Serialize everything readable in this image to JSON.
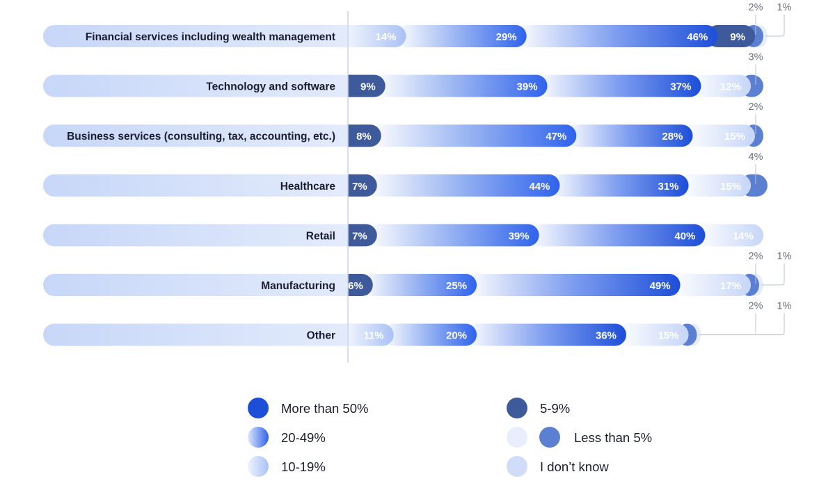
{
  "chart_data": {
    "type": "bar",
    "orientation": "horizontal",
    "stacked": true,
    "categories": [
      "Financial services including wealth management",
      "Technology and software",
      "Business services (consulting, tax, accounting, etc.)",
      "Healthcare",
      "Retail",
      "Manufacturing",
      "Other"
    ],
    "series": [
      {
        "name": "5-9%",
        "key": "s5_9",
        "values": [
          null,
          9,
          8,
          7,
          7,
          6,
          null
        ]
      },
      {
        "name": "10-19%",
        "key": "s10_19",
        "values": [
          14,
          null,
          null,
          null,
          null,
          null,
          11
        ]
      },
      {
        "name": "20-49%",
        "key": "s20_49",
        "values": [
          29,
          39,
          47,
          44,
          39,
          25,
          20
        ]
      },
      {
        "name": "More than 50%",
        "key": "s50",
        "values": [
          46,
          37,
          28,
          31,
          40,
          49,
          36
        ]
      },
      {
        "name": "5-9%",
        "key": "s5_9b",
        "values": [
          9,
          null,
          null,
          null,
          null,
          null,
          null
        ]
      },
      {
        "name": "I don’t know",
        "key": "dk",
        "values": [
          null,
          12,
          15,
          15,
          14,
          17,
          15
        ]
      },
      {
        "name": "Less than 5%",
        "key": "lt5",
        "values": [
          2,
          3,
          2,
          4,
          null,
          2,
          2
        ]
      },
      {
        "name": "Less than 5% (light)",
        "key": "lt5light",
        "values": [
          1,
          null,
          null,
          null,
          null,
          1,
          1
        ]
      }
    ],
    "segment_order": [
      [
        "10-19%",
        "20-49%",
        "More than 50%",
        "5-9%",
        "Less than 5%",
        "Less than 5% (light)"
      ],
      [
        "5-9%",
        "20-49%",
        "More than 50%",
        "I don’t know",
        "Less than 5%"
      ],
      [
        "5-9%",
        "20-49%",
        "More than 50%",
        "I don’t know",
        "Less than 5%"
      ],
      [
        "5-9%",
        "20-49%",
        "More than 50%",
        "I don’t know",
        "Less than 5%"
      ],
      [
        "5-9%",
        "20-49%",
        "More than 50%",
        "I don’t know"
      ],
      [
        "5-9%",
        "20-49%",
        "More than 50%",
        "I don’t know",
        "Less than 5%",
        "Less than 5% (light)"
      ],
      [
        "10-19%",
        "20-49%",
        "More than 50%",
        "I don’t know",
        "Less than 5%",
        "Less than 5% (light)"
      ]
    ],
    "rows": [
      {
        "label": "Financial services including wealth management",
        "segments": [
          {
            "series": "10-19%",
            "value": 14,
            "label": "14%"
          },
          {
            "series": "20-49%",
            "value": 29,
            "label": "29%"
          },
          {
            "series": "More than 50%",
            "value": 46,
            "label": "46%"
          },
          {
            "series": "5-9%",
            "value": 9,
            "label": "9%"
          },
          {
            "series": "Less than 5%",
            "value": 2,
            "label": "2%",
            "outside": true
          },
          {
            "series": "Less than 5% (light)",
            "value": 1,
            "label": "1%",
            "outside": true
          }
        ]
      },
      {
        "label": "Technology and software",
        "segments": [
          {
            "series": "5-9%",
            "value": 9,
            "label": "9%"
          },
          {
            "series": "20-49%",
            "value": 39,
            "label": "39%"
          },
          {
            "series": "More than 50%",
            "value": 37,
            "label": "37%"
          },
          {
            "series": "I don’t know",
            "value": 12,
            "label": "12%"
          },
          {
            "series": "Less than 5%",
            "value": 3,
            "label": "3%",
            "outside": true
          }
        ]
      },
      {
        "label": "Business services (consulting, tax, accounting, etc.)",
        "segments": [
          {
            "series": "5-9%",
            "value": 8,
            "label": "8%"
          },
          {
            "series": "20-49%",
            "value": 47,
            "label": "47%"
          },
          {
            "series": "More than 50%",
            "value": 28,
            "label": "28%"
          },
          {
            "series": "I don’t know",
            "value": 15,
            "label": "15%"
          },
          {
            "series": "Less than 5%",
            "value": 2,
            "label": "2%",
            "outside": true
          }
        ]
      },
      {
        "label": "Healthcare",
        "segments": [
          {
            "series": "5-9%",
            "value": 7,
            "label": "7%"
          },
          {
            "series": "20-49%",
            "value": 44,
            "label": "44%"
          },
          {
            "series": "More than 50%",
            "value": 31,
            "label": "31%"
          },
          {
            "series": "I don’t know",
            "value": 15,
            "label": "15%"
          },
          {
            "series": "Less than 5%",
            "value": 4,
            "label": "4%",
            "outside": true
          }
        ]
      },
      {
        "label": "Retail",
        "segments": [
          {
            "series": "5-9%",
            "value": 7,
            "label": "7%"
          },
          {
            "series": "20-49%",
            "value": 39,
            "label": "39%"
          },
          {
            "series": "More than 50%",
            "value": 40,
            "label": "40%"
          },
          {
            "series": "I don’t know",
            "value": 14,
            "label": "14%"
          }
        ]
      },
      {
        "label": "Manufacturing",
        "segments": [
          {
            "series": "5-9%",
            "value": 6,
            "label": "6%"
          },
          {
            "series": "20-49%",
            "value": 25,
            "label": "25%"
          },
          {
            "series": "More than 50%",
            "value": 49,
            "label": "49%"
          },
          {
            "series": "I don’t know",
            "value": 17,
            "label": "17%"
          },
          {
            "series": "Less than 5%",
            "value": 2,
            "label": "2%",
            "outside": true
          },
          {
            "series": "Less than 5% (light)",
            "value": 1,
            "label": "1%",
            "outside": true
          }
        ]
      },
      {
        "label": "Other",
        "segments": [
          {
            "series": "10-19%",
            "value": 11,
            "label": "11%"
          },
          {
            "series": "20-49%",
            "value": 20,
            "label": "20%"
          },
          {
            "series": "More than 50%",
            "value": 36,
            "label": "36%"
          },
          {
            "series": "I don’t know",
            "value": 15,
            "label": "15%"
          },
          {
            "series": "Less than 5%",
            "value": 2,
            "label": "2%",
            "outside": true
          },
          {
            "series": "Less than 5% (light)",
            "value": 1,
            "label": "1%",
            "outside": true
          }
        ]
      }
    ],
    "xlim": [
      0,
      100
    ],
    "title": "",
    "xlabel": "",
    "ylabel": "",
    "legend": [
      {
        "name": "More than 50%",
        "color": "#1d4ed8",
        "style": "solid"
      },
      {
        "name": "20-49%",
        "color": "#3b6df0",
        "style": "gradient"
      },
      {
        "name": "10-19%",
        "color": "#a9c1f5",
        "style": "gradient-light"
      },
      {
        "name": "5-9%",
        "color": "#3e5a9a",
        "style": "solid"
      },
      {
        "name": "Less than 5%",
        "color": "#5b7fd1",
        "style": "pair",
        "secondary_color": "#e8eefc"
      },
      {
        "name": "I don’t know",
        "color": "#d0dcf8",
        "style": "solid"
      }
    ],
    "legend_position": "bottom"
  },
  "colors": {
    "dark_blue": "#1d4ed8",
    "slate_blue": "#3e5a9a",
    "mid_blue": "#5b7fd1",
    "light_blue": "#cddaf8",
    "pale": "#e8eefc",
    "label_pill": "#cbdaf9",
    "text_dark": "#1a1d2e",
    "text_gray": "#6b7280",
    "axis_line": "#c7d3ef"
  }
}
